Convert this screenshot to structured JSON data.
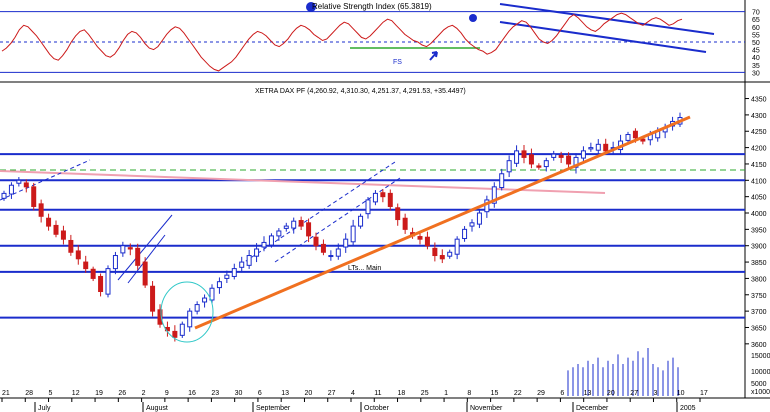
{
  "rsi_panel": {
    "title": "Relative Strength Index (65.3819)",
    "ylim": [
      25,
      75
    ],
    "y_ticks": [
      70,
      65,
      60,
      55,
      50,
      45,
      40,
      35,
      30
    ],
    "hlines": [
      70,
      50,
      30
    ],
    "annotation": "FS",
    "series": [
      44,
      46,
      49,
      53,
      58,
      61,
      60,
      57,
      54,
      50,
      46,
      42,
      39,
      38,
      41,
      45,
      50,
      54,
      57,
      58,
      55,
      51,
      47,
      44,
      41,
      40,
      42,
      46,
      51,
      55,
      57,
      56,
      53,
      49,
      46,
      45,
      47,
      51,
      55,
      58,
      60,
      59,
      56,
      52,
      48,
      44,
      40,
      37,
      34,
      32,
      31,
      33,
      35,
      37,
      40,
      44,
      48,
      52,
      55,
      57,
      56,
      54,
      51,
      48,
      47,
      49,
      52,
      56,
      59,
      61,
      60,
      58,
      55,
      53,
      51,
      52,
      55,
      58,
      61,
      63,
      62,
      59,
      56,
      53,
      52,
      54,
      57,
      60,
      63,
      65,
      64,
      61,
      58,
      55,
      53,
      51,
      50,
      48,
      47,
      49,
      52,
      55,
      58,
      60,
      61,
      59,
      56,
      52,
      49,
      47,
      45,
      44,
      42,
      43,
      45,
      49,
      53,
      57,
      60,
      62,
      64,
      63,
      60,
      56,
      52,
      50,
      49,
      51,
      54,
      58,
      62,
      66,
      68,
      66,
      63,
      60,
      58,
      57,
      59,
      62,
      64,
      66,
      68,
      69,
      68,
      66,
      64,
      62,
      61,
      63,
      65,
      66,
      65,
      63,
      61,
      62,
      64,
      65
    ]
  },
  "chart_data": {
    "type": "candlestick",
    "title": "XETRA DAX PF (4,260.92, 4,310.30, 4,251.37, 4,291.53, +35.4497)",
    "ylim": [
      3520,
      4370
    ],
    "y_ticks": [
      4350,
      4300,
      4250,
      4200,
      4150,
      4100,
      4050,
      4000,
      3950,
      3900,
      3850,
      3800,
      3750,
      3700,
      3650,
      3600
    ],
    "x_ticks": [
      "21",
      "28",
      "5",
      "12",
      "19",
      "26",
      "2",
      "9",
      "16",
      "23",
      "30",
      "6",
      "13",
      "20",
      "27",
      "4",
      "11",
      "18",
      "25",
      "1",
      "8",
      "15",
      "22",
      "29",
      "6",
      "13",
      "20",
      "27",
      "3",
      "10",
      "17"
    ],
    "month_labels": [
      "July",
      "August",
      "September",
      "October",
      "November",
      "December",
      "2005"
    ],
    "horizontal_levels": [
      4180,
      4100,
      4010,
      3900,
      3820,
      3680
    ],
    "annotation": "LTs... Main",
    "volume_ticks": [
      "15000",
      "10000",
      "5000",
      "x1000"
    ],
    "close": [
      4060,
      4085,
      4100,
      4080,
      4020,
      3990,
      3960,
      3935,
      3920,
      3880,
      3860,
      3830,
      3800,
      3760,
      3830,
      3870,
      3900,
      3890,
      3840,
      3780,
      3700,
      3660,
      3640,
      3620,
      3660,
      3700,
      3720,
      3740,
      3770,
      3790,
      3810,
      3830,
      3850,
      3870,
      3890,
      3910,
      3930,
      3945,
      3960,
      3975,
      3960,
      3930,
      3900,
      3880,
      3870,
      3890,
      3920,
      3960,
      3990,
      4040,
      4060,
      4050,
      4020,
      3980,
      3950,
      3930,
      3920,
      3900,
      3870,
      3860,
      3880,
      3920,
      3950,
      3970,
      4000,
      4040,
      4080,
      4120,
      4160,
      4190,
      4170,
      4150,
      4140,
      4160,
      4180,
      4170,
      4150,
      4170,
      4190,
      4200,
      4210,
      4190,
      4200,
      4220,
      4240,
      4230,
      4220,
      4240,
      4250,
      4260,
      4280,
      4292
    ]
  }
}
